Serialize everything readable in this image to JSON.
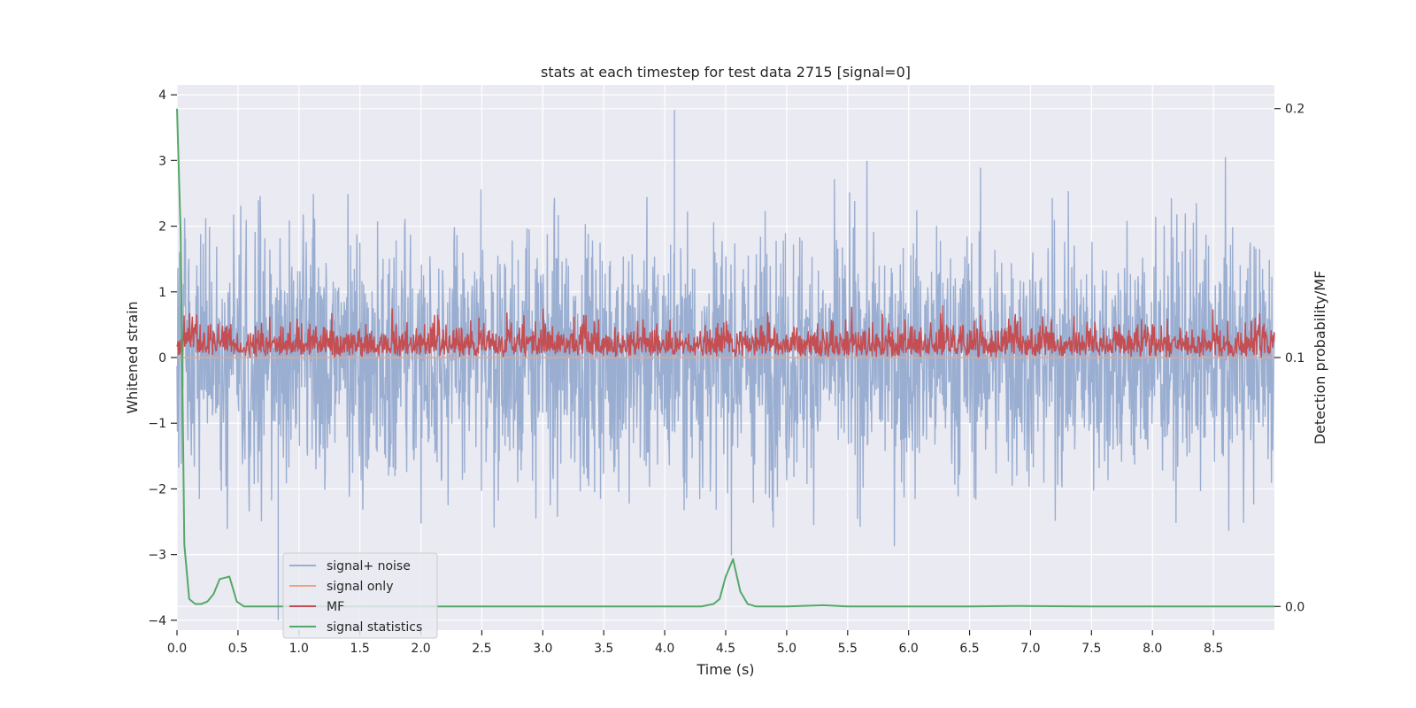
{
  "chart_data": {
    "type": "line",
    "title": "stats at each timestep for test data 2715 [signal=0]",
    "xlabel": "Time (s)",
    "ylabel": "Whitened strain",
    "y2label": "Detection probability/MF",
    "xlim": [
      0,
      9.0
    ],
    "ylim": [
      -4.15,
      4.15
    ],
    "y2lim": [
      -0.0095,
      0.2095
    ],
    "xticks": [
      0.0,
      0.5,
      1.0,
      1.5,
      2.0,
      2.5,
      3.0,
      3.5,
      4.0,
      4.5,
      5.0,
      5.5,
      6.0,
      6.5,
      7.0,
      7.5,
      8.0,
      8.5
    ],
    "xtick_labels": [
      "0.0",
      "0.5",
      "1.0",
      "1.5",
      "2.0",
      "2.5",
      "3.0",
      "3.5",
      "4.0",
      "4.5",
      "5.0",
      "5.5",
      "6.0",
      "6.5",
      "7.0",
      "7.5",
      "8.0",
      "8.5"
    ],
    "yticks": [
      -4,
      -3,
      -2,
      -1,
      0,
      1,
      2,
      3,
      4
    ],
    "ytick_labels": [
      "−4",
      "−3",
      "−2",
      "−1",
      "0",
      "1",
      "2",
      "3",
      "4"
    ],
    "y2ticks": [
      0.0,
      0.1,
      0.2
    ],
    "y2tick_labels": [
      "0.0",
      "0.1",
      "0.2"
    ],
    "grid": true,
    "legend_position": "lower-left",
    "colors": {
      "background": "#eaeaf2",
      "grid": "#ffffff",
      "noise": "#9aaed1",
      "signal_only": "#e8a58a",
      "mf": "#c44e52",
      "stats": "#55a868"
    },
    "series": [
      {
        "name": "signal+ noise",
        "axis": "left",
        "style": "noise band",
        "x_range": [
          0,
          9.0
        ],
        "approx_range": [
          -3.5,
          3.5
        ],
        "max_value": 3.77,
        "max_at": 4.08,
        "min_value": -4.0,
        "min_at": 0.83
      },
      {
        "name": "signal only",
        "axis": "left",
        "style": "flat",
        "x_range": [
          0,
          9.0
        ],
        "value": 0.0
      },
      {
        "name": "MF",
        "axis": "left",
        "style": "noise band",
        "x_range": [
          0,
          9.0
        ],
        "approx_range": [
          0.0,
          1.0
        ]
      },
      {
        "name": "signal statistics",
        "axis": "right",
        "style": "line",
        "x": [
          0.0,
          0.03,
          0.06,
          0.1,
          0.15,
          0.2,
          0.25,
          0.3,
          0.35,
          0.43,
          0.49,
          0.55,
          0.6,
          1.0,
          1.5,
          2.0,
          2.5,
          3.0,
          3.5,
          4.0,
          4.3,
          4.4,
          4.45,
          4.5,
          4.56,
          4.62,
          4.68,
          4.75,
          4.85,
          5.0,
          5.3,
          5.5,
          6.0,
          6.5,
          6.9,
          7.5,
          8.0,
          8.5,
          9.0
        ],
        "y": [
          0.2,
          0.15,
          0.025,
          0.003,
          0.001,
          0.001,
          0.002,
          0.005,
          0.011,
          0.012,
          0.002,
          0.0,
          0.0,
          0.0,
          0.0,
          0.0,
          0.0,
          0.0,
          0.0,
          0.0,
          0.0,
          0.001,
          0.003,
          0.012,
          0.019,
          0.006,
          0.001,
          0.0,
          0.0,
          0.0,
          0.0005,
          0.0,
          0.0,
          0.0,
          0.0002,
          0.0,
          0.0,
          0.0,
          0.0
        ]
      }
    ]
  }
}
